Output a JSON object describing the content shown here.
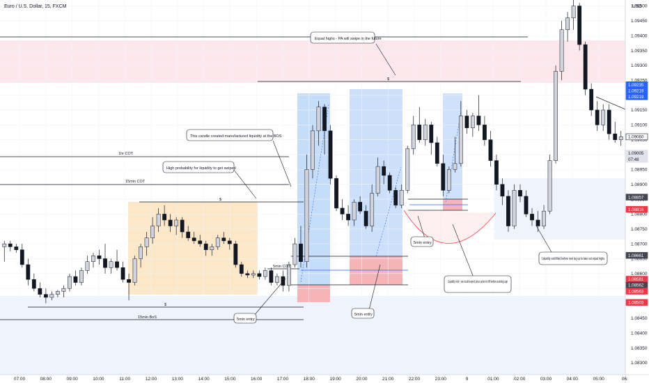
{
  "chart_data": {
    "type": "candlestick",
    "title": "Euro / U.S. Dollar, 15, FXCM",
    "currency": "USD",
    "colors": {
      "up": "#d1d4dc",
      "down": "#131722",
      "wick": "#131722"
    },
    "y_axis": {
      "range": [
        1.0826,
        1.0952
      ],
      "ticks": [
        "1.09500",
        "1.09450",
        "1.09400",
        "1.09350",
        "1.09300",
        "1.09250",
        "1.09200",
        "1.09150",
        "1.09100",
        "1.09050",
        "1.09000",
        "1.08950",
        "1.08900",
        "1.08850",
        "1.08800",
        "1.08750",
        "1.08700",
        "1.08650",
        "1.08600",
        "1.08550",
        "1.08500",
        "1.08450",
        "1.08400",
        "1.08350",
        "1.08300"
      ]
    },
    "x_axis": {
      "ticks": [
        "07:00",
        "08:00",
        "09:00",
        "10:00",
        "11:00",
        "12:00",
        "13:00",
        "14:00",
        "15:00",
        "16:00",
        "17:00",
        "18:00",
        "19:00",
        "20:00",
        "21:00",
        "22:00",
        "23:00",
        "9",
        "01:00",
        "02:00",
        "03:00",
        "04:00",
        "05:00",
        "06:"
      ]
    },
    "price_tags": [
      {
        "value": "1.09235",
        "bg": "#2962ff",
        "fg": "#ffffff"
      },
      {
        "value": "1.09219",
        "bg": "#2962ff",
        "fg": "#ffffff"
      },
      {
        "value": "1.09219",
        "bg": "#2962ff",
        "fg": "#ffffff"
      },
      {
        "value": "1.09060",
        "bg": "#ffffff",
        "fg": "#131722",
        "border": "#131722"
      },
      {
        "value": "1.09005",
        "bg": "#e0e3eb",
        "fg": "#131722"
      },
      {
        "value": "07:48",
        "bg": "#e0e3eb",
        "fg": "#131722"
      },
      {
        "value": "1.08857",
        "bg": "#434651",
        "fg": "#ffffff"
      },
      {
        "value": "1.08816",
        "bg": "#f23645",
        "fg": "#ffffff"
      },
      {
        "value": "1.08661",
        "bg": "#434651",
        "fg": "#ffffff"
      },
      {
        "value": "1.08581",
        "bg": "#f23645",
        "fg": "#ffffff"
      },
      {
        "value": "1.08562",
        "bg": "#434651",
        "fg": "#ffffff"
      },
      {
        "value": "1.08563",
        "bg": "#f23645",
        "fg": "#ffffff"
      },
      {
        "value": "1.08503",
        "bg": "#f23645",
        "fg": "#ffffff"
      }
    ],
    "line_labels": [
      "1hr COT",
      "15min COT",
      "15min BoS",
      "5min COT",
      "$",
      "$",
      "$"
    ],
    "callouts": [
      "Equal highs - PA will swipe in the future",
      "This candle created manufactured liquidity at the BOS",
      "High probability for liquidity to get swiped",
      "5min entry",
      "5min entry",
      "5min entry",
      "Liquidity void - we could expect price action to fill before pushing upp",
      "Liquidity void filled before next leg up to take out equal highs"
    ],
    "candles": [
      {
        "o": 1.0869,
        "h": 1.0871,
        "l": 1.0864,
        "c": 1.087
      },
      {
        "o": 1.087,
        "h": 1.0871,
        "l": 1.08675,
        "c": 1.0869
      },
      {
        "o": 1.0869,
        "h": 1.087,
        "l": 1.0867,
        "c": 1.0868
      },
      {
        "o": 1.0868,
        "h": 1.087,
        "l": 1.0862,
        "c": 1.0863
      },
      {
        "o": 1.0863,
        "h": 1.0865,
        "l": 1.0856,
        "c": 1.0858
      },
      {
        "o": 1.0858,
        "h": 1.086,
        "l": 1.0854,
        "c": 1.0855
      },
      {
        "o": 1.0855,
        "h": 1.0857,
        "l": 1.0852,
        "c": 1.0853
      },
      {
        "o": 1.0853,
        "h": 1.0855,
        "l": 1.085,
        "c": 1.0852
      },
      {
        "o": 1.0852,
        "h": 1.0854,
        "l": 1.0851,
        "c": 1.0853
      },
      {
        "o": 1.0853,
        "h": 1.08545,
        "l": 1.0852,
        "c": 1.0854
      },
      {
        "o": 1.0854,
        "h": 1.0856,
        "l": 1.0852,
        "c": 1.0855
      },
      {
        "o": 1.0855,
        "h": 1.086,
        "l": 1.0854,
        "c": 1.0859
      },
      {
        "o": 1.0859,
        "h": 1.0861,
        "l": 1.0856,
        "c": 1.0857
      },
      {
        "o": 1.0857,
        "h": 1.0862,
        "l": 1.0856,
        "c": 1.0861
      },
      {
        "o": 1.0861,
        "h": 1.0866,
        "l": 1.086,
        "c": 1.0864
      },
      {
        "o": 1.0864,
        "h": 1.0867,
        "l": 1.0862,
        "c": 1.0866
      },
      {
        "o": 1.0866,
        "h": 1.0868,
        "l": 1.0863,
        "c": 1.0865
      },
      {
        "o": 1.0865,
        "h": 1.087,
        "l": 1.086,
        "c": 1.0862
      },
      {
        "o": 1.0862,
        "h": 1.0865,
        "l": 1.086,
        "c": 1.0864
      },
      {
        "o": 1.0864,
        "h": 1.0868,
        "l": 1.0861,
        "c": 1.0862
      },
      {
        "o": 1.0862,
        "h": 1.0864,
        "l": 1.0857,
        "c": 1.0858
      },
      {
        "o": 1.0858,
        "h": 1.086,
        "l": 1.0851,
        "c": 1.0857
      },
      {
        "o": 1.0857,
        "h": 1.0866,
        "l": 1.0856,
        "c": 1.0865
      },
      {
        "o": 1.0865,
        "h": 1.087,
        "l": 1.0862,
        "c": 1.0869
      },
      {
        "o": 1.0869,
        "h": 1.0874,
        "l": 1.0866,
        "c": 1.0872
      },
      {
        "o": 1.0872,
        "h": 1.0879,
        "l": 1.087,
        "c": 1.0876
      },
      {
        "o": 1.0876,
        "h": 1.0882,
        "l": 1.0874,
        "c": 1.088
      },
      {
        "o": 1.088,
        "h": 1.0883,
        "l": 1.0876,
        "c": 1.0878
      },
      {
        "o": 1.0878,
        "h": 1.088,
        "l": 1.0874,
        "c": 1.0876
      },
      {
        "o": 1.0876,
        "h": 1.0879,
        "l": 1.0873,
        "c": 1.0878
      },
      {
        "o": 1.0878,
        "h": 1.0879,
        "l": 1.0872,
        "c": 1.0874
      },
      {
        "o": 1.0874,
        "h": 1.0876,
        "l": 1.0871,
        "c": 1.0872
      },
      {
        "o": 1.0872,
        "h": 1.0874,
        "l": 1.087,
        "c": 1.0871
      },
      {
        "o": 1.0871,
        "h": 1.0873,
        "l": 1.0869,
        "c": 1.087
      },
      {
        "o": 1.087,
        "h": 1.0871,
        "l": 1.0866,
        "c": 1.0868
      },
      {
        "o": 1.0868,
        "h": 1.087,
        "l": 1.0866,
        "c": 1.0869
      },
      {
        "o": 1.0869,
        "h": 1.0873,
        "l": 1.0868,
        "c": 1.0872
      },
      {
        "o": 1.0872,
        "h": 1.0874,
        "l": 1.087,
        "c": 1.0871
      },
      {
        "o": 1.0871,
        "h": 1.0872,
        "l": 1.0868,
        "c": 1.087
      },
      {
        "o": 1.087,
        "h": 1.0871,
        "l": 1.0862,
        "c": 1.0863
      },
      {
        "o": 1.0863,
        "h": 1.0864,
        "l": 1.0859,
        "c": 1.086
      },
      {
        "o": 1.086,
        "h": 1.0861,
        "l": 1.08585,
        "c": 1.08595
      },
      {
        "o": 1.08595,
        "h": 1.0861,
        "l": 1.08585,
        "c": 1.086
      },
      {
        "o": 1.086,
        "h": 1.0861,
        "l": 1.0858,
        "c": 1.0859
      },
      {
        "o": 1.0859,
        "h": 1.0862,
        "l": 1.0858,
        "c": 1.0861
      },
      {
        "o": 1.0861,
        "h": 1.0862,
        "l": 1.0856,
        "c": 1.0857
      },
      {
        "o": 1.0857,
        "h": 1.086,
        "l": 1.0856,
        "c": 1.0859
      },
      {
        "o": 1.0859,
        "h": 1.0861,
        "l": 1.0854,
        "c": 1.0856
      },
      {
        "o": 1.0856,
        "h": 1.0864,
        "l": 1.0854,
        "c": 1.0863
      },
      {
        "o": 1.0863,
        "h": 1.0872,
        "l": 1.0862,
        "c": 1.087
      },
      {
        "o": 1.087,
        "h": 1.0876,
        "l": 1.0862,
        "c": 1.0864
      },
      {
        "o": 1.0864,
        "h": 1.09,
        "l": 1.0862,
        "c": 1.0895
      },
      {
        "o": 1.0895,
        "h": 1.091,
        "l": 1.0892,
        "c": 1.0908
      },
      {
        "o": 1.0908,
        "h": 1.0918,
        "l": 1.0903,
        "c": 1.0916
      },
      {
        "o": 1.0916,
        "h": 1.0917,
        "l": 1.09,
        "c": 1.0908
      },
      {
        "o": 1.0908,
        "h": 1.091,
        "l": 1.089,
        "c": 1.0892
      },
      {
        "o": 1.0892,
        "h": 1.0893,
        "l": 1.0881,
        "c": 1.0882
      },
      {
        "o": 1.0882,
        "h": 1.0885,
        "l": 1.0878,
        "c": 1.088
      },
      {
        "o": 1.088,
        "h": 1.0883,
        "l": 1.0876,
        "c": 1.0878
      },
      {
        "o": 1.0878,
        "h": 1.0885,
        "l": 1.0876,
        "c": 1.0884
      },
      {
        "o": 1.0884,
        "h": 1.0886,
        "l": 1.088,
        "c": 1.0881
      },
      {
        "o": 1.0881,
        "h": 1.0883,
        "l": 1.0875,
        "c": 1.0876
      },
      {
        "o": 1.0876,
        "h": 1.089,
        "l": 1.0874,
        "c": 1.0887
      },
      {
        "o": 1.0887,
        "h": 1.0899,
        "l": 1.0886,
        "c": 1.0896
      },
      {
        "o": 1.0896,
        "h": 1.0898,
        "l": 1.089,
        "c": 1.0893
      },
      {
        "o": 1.0893,
        "h": 1.0894,
        "l": 1.0887,
        "c": 1.0888
      },
      {
        "o": 1.0888,
        "h": 1.0889,
        "l": 1.0882,
        "c": 1.0883
      },
      {
        "o": 1.0883,
        "h": 1.089,
        "l": 1.0882,
        "c": 1.0888
      },
      {
        "o": 1.0888,
        "h": 1.0903,
        "l": 1.0887,
        "c": 1.0902
      },
      {
        "o": 1.0902,
        "h": 1.0913,
        "l": 1.09,
        "c": 1.091
      },
      {
        "o": 1.091,
        "h": 1.0916,
        "l": 1.0904,
        "c": 1.0905
      },
      {
        "o": 1.0905,
        "h": 1.0912,
        "l": 1.0903,
        "c": 1.091
      },
      {
        "o": 1.091,
        "h": 1.0911,
        "l": 1.09,
        "c": 1.0904
      },
      {
        "o": 1.0904,
        "h": 1.0906,
        "l": 1.0896,
        "c": 1.0897
      },
      {
        "o": 1.0897,
        "h": 1.09,
        "l": 1.0886,
        "c": 1.0888
      },
      {
        "o": 1.0888,
        "h": 1.0896,
        "l": 1.0887,
        "c": 1.0895
      },
      {
        "o": 1.0895,
        "h": 1.0906,
        "l": 1.0894,
        "c": 1.0897
      },
      {
        "o": 1.0897,
        "h": 1.0918,
        "l": 1.0896,
        "c": 1.0913
      },
      {
        "o": 1.0913,
        "h": 1.0915,
        "l": 1.0907,
        "c": 1.0909
      },
      {
        "o": 1.0909,
        "h": 1.0914,
        "l": 1.0906,
        "c": 1.0913
      },
      {
        "o": 1.0913,
        "h": 1.092,
        "l": 1.0908,
        "c": 1.091
      },
      {
        "o": 1.091,
        "h": 1.0913,
        "l": 1.0903,
        "c": 1.0905
      },
      {
        "o": 1.0905,
        "h": 1.0908,
        "l": 1.0896,
        "c": 1.0898
      },
      {
        "o": 1.0898,
        "h": 1.09,
        "l": 1.0888,
        "c": 1.089
      },
      {
        "o": 1.089,
        "h": 1.0892,
        "l": 1.0883,
        "c": 1.0886
      },
      {
        "o": 1.0886,
        "h": 1.0888,
        "l": 1.0874,
        "c": 1.0876
      },
      {
        "o": 1.0876,
        "h": 1.089,
        "l": 1.0875,
        "c": 1.0888
      },
      {
        "o": 1.0888,
        "h": 1.089,
        "l": 1.0884,
        "c": 1.0886
      },
      {
        "o": 1.0886,
        "h": 1.0888,
        "l": 1.0879,
        "c": 1.088
      },
      {
        "o": 1.088,
        "h": 1.0882,
        "l": 1.0876,
        "c": 1.0878
      },
      {
        "o": 1.0878,
        "h": 1.0881,
        "l": 1.0874,
        "c": 1.0876
      },
      {
        "o": 1.0876,
        "h": 1.0883,
        "l": 1.0875,
        "c": 1.0881
      },
      {
        "o": 1.0881,
        "h": 1.09,
        "l": 1.088,
        "c": 1.0898
      },
      {
        "o": 1.0898,
        "h": 1.093,
        "l": 1.0897,
        "c": 1.0928
      },
      {
        "o": 1.0928,
        "h": 1.0945,
        "l": 1.0925,
        "c": 1.0942
      },
      {
        "o": 1.0942,
        "h": 1.0948,
        "l": 1.0938,
        "c": 1.0946
      },
      {
        "o": 1.0946,
        "h": 1.0952,
        "l": 1.0942,
        "c": 1.095
      },
      {
        "o": 1.095,
        "h": 1.0951,
        "l": 1.0935,
        "c": 1.0937
      },
      {
        "o": 1.0937,
        "h": 1.0938,
        "l": 1.092,
        "c": 1.0922
      },
      {
        "o": 1.0922,
        "h": 1.0924,
        "l": 1.0913,
        "c": 1.0915
      },
      {
        "o": 1.0915,
        "h": 1.0918,
        "l": 1.0908,
        "c": 1.091
      },
      {
        "o": 1.091,
        "h": 1.0917,
        "l": 1.0908,
        "c": 1.0915
      },
      {
        "o": 1.0915,
        "h": 1.0917,
        "l": 1.0905,
        "c": 1.0907
      },
      {
        "o": 1.0907,
        "h": 1.0911,
        "l": 1.0904,
        "c": 1.0905
      },
      {
        "o": 1.0905,
        "h": 1.0908,
        "l": 1.0903,
        "c": 1.0906
      }
    ]
  }
}
